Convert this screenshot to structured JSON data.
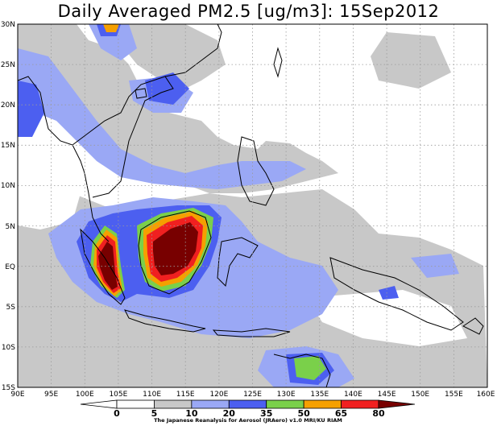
{
  "title": "Daily Averaged PM2.5 [ug/m3]: 15Sep2012",
  "lon_ticks": [
    "90E",
    "95E",
    "100E",
    "105E",
    "110E",
    "115E",
    "120E",
    "125E",
    "130E",
    "135E",
    "140E",
    "145E",
    "150E",
    "155E",
    "160E"
  ],
  "lat_ticks": [
    "30N",
    "25N",
    "20N",
    "15N",
    "10N",
    "5N",
    "EQ",
    "5S",
    "10S",
    "15S"
  ],
  "lon_range": [
    90,
    160
  ],
  "lat_range": [
    -15,
    30
  ],
  "colorbar": {
    "labels": [
      "0",
      "5",
      "10",
      "20",
      "35",
      "50",
      "65",
      "80"
    ],
    "colors": [
      "#ffffff",
      "#ffffff",
      "#c8c8c8",
      "#9aa8f5",
      "#4c5ff0",
      "#7ad04a",
      "#f5a000",
      "#f02020",
      "#780000"
    ],
    "unit": "ug/m3"
  },
  "credit": "The Japanese Reanalysis for Aerosol (JRAero) v1.0 MRI/KU RIAM",
  "legend": {
    "grid": "dotted"
  }
}
